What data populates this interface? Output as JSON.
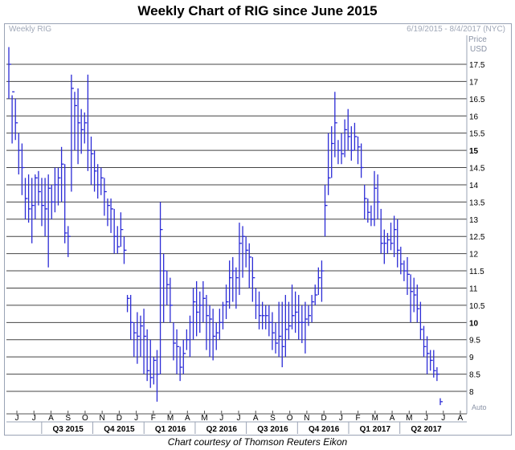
{
  "title": "Weekly Chart of RIG since June 2015",
  "panel_label": "Weekly RIG",
  "date_range": "6/19/2015 - 8/4/2017 (NYC)",
  "credit": "Chart courtesy of Thomson Reuters Eikon",
  "auto_label": "Auto",
  "colors": {
    "bars": "#2b2bd6",
    "grid": "#444444",
    "frame": "#9aa3b5"
  },
  "chart_data": {
    "type": "ohlc",
    "title": "Weekly Chart of RIG since June 2015",
    "ylabel": "Price USD",
    "ylim": [
      7.6,
      18.4
    ],
    "y_ticks": [
      "8",
      "8.5",
      "9",
      "9.5",
      "10",
      "10.5",
      "11",
      "11.5",
      "12",
      "12.5",
      "13",
      "13.5",
      "14",
      "14.5",
      "15",
      "15.5",
      "16",
      "16.5",
      "17",
      "17.5"
    ],
    "y_ticks_bold": [
      "10",
      "15"
    ],
    "month_ticks": [
      "J",
      "J",
      "A",
      "S",
      "O",
      "N",
      "D",
      "J",
      "F",
      "M",
      "A",
      "M",
      "J",
      "J",
      "A",
      "S",
      "O",
      "N",
      "D",
      "J",
      "F",
      "M",
      "A",
      "M",
      "J",
      "J",
      "A"
    ],
    "quarters": [
      "Q3 2015",
      "Q4 2015",
      "Q1 2016",
      "Q2 2016",
      "Q3 2016",
      "Q4 2016",
      "Q1 2017",
      "Q2 2017"
    ],
    "grid": true,
    "series": [
      {
        "values": [
          [
            18.0,
            16.5,
            17.5
          ],
          [
            16.6,
            15.2,
            16.7
          ],
          [
            16.5,
            15.3,
            15.8
          ],
          [
            15.5,
            14.3,
            15.0
          ],
          [
            15.2,
            13.7,
            14.5
          ],
          [
            14.2,
            13.0,
            13.6
          ],
          [
            14.3,
            12.9,
            13.3
          ],
          [
            14.2,
            12.3,
            13.4
          ],
          [
            14.3,
            13.0,
            14.2
          ],
          [
            14.4,
            13.4,
            13.8
          ],
          [
            14.2,
            12.8,
            13.4
          ],
          [
            14.2,
            12.5,
            13.3
          ],
          [
            14.3,
            11.6,
            13.9
          ],
          [
            14.0,
            13.0,
            13.5
          ],
          [
            14.5,
            13.2,
            14.0
          ],
          [
            14.5,
            13.4,
            14.2
          ],
          [
            15.1,
            13.5,
            14.6
          ],
          [
            14.6,
            12.3,
            12.6
          ],
          [
            12.8,
            11.9,
            12.5
          ],
          [
            17.2,
            13.8,
            16.8
          ],
          [
            16.7,
            15.0,
            16.3
          ],
          [
            16.8,
            14.6,
            15.8
          ],
          [
            16.2,
            14.9,
            15.6
          ],
          [
            16.1,
            15.2,
            15.8
          ],
          [
            17.2,
            14.4,
            15.0
          ],
          [
            15.4,
            14.0,
            14.9
          ],
          [
            15.0,
            13.8,
            14.4
          ],
          [
            14.6,
            13.6,
            14.0
          ],
          [
            14.5,
            13.7,
            14.2
          ],
          [
            14.2,
            13.1,
            13.8
          ],
          [
            13.6,
            12.8,
            13.4
          ],
          [
            13.6,
            12.6,
            13.3
          ],
          [
            13.3,
            12.0,
            12.5
          ],
          [
            12.8,
            12.0,
            12.2
          ],
          [
            13.2,
            12.2,
            12.7
          ],
          [
            12.5,
            11.7,
            12.1
          ],
          [
            10.8,
            10.3,
            10.7
          ],
          [
            10.8,
            9.5,
            10.0
          ],
          [
            10.0,
            9.0,
            9.7
          ],
          [
            10.3,
            8.8,
            9.6
          ],
          [
            10.2,
            9.0,
            9.9
          ],
          [
            10.4,
            8.5,
            9.6
          ],
          [
            9.8,
            8.3,
            8.6
          ],
          [
            9.5,
            8.1,
            8.4
          ],
          [
            9.0,
            8.2,
            8.9
          ],
          [
            9.2,
            7.7,
            8.5
          ],
          [
            13.5,
            8.5,
            12.7
          ],
          [
            12.0,
            10.0,
            11.5
          ],
          [
            11.5,
            10.5,
            11.1
          ],
          [
            11.3,
            10.0,
            10.5
          ],
          [
            10.0,
            8.9,
            9.4
          ],
          [
            9.8,
            8.5,
            9.3
          ],
          [
            9.3,
            8.3,
            8.7
          ],
          [
            9.5,
            8.5,
            9.1
          ],
          [
            9.8,
            9.2,
            9.5
          ],
          [
            10.2,
            9.0,
            10.0
          ],
          [
            11.0,
            9.5,
            10.6
          ],
          [
            11.2,
            9.6,
            10.3
          ],
          [
            10.9,
            9.7,
            10.5
          ],
          [
            11.2,
            10.0,
            10.7
          ],
          [
            10.8,
            9.2,
            10.2
          ],
          [
            10.5,
            9.0,
            10.1
          ],
          [
            10.4,
            8.9,
            9.6
          ],
          [
            10.0,
            9.2,
            9.7
          ],
          [
            10.4,
            9.5,
            10.0
          ],
          [
            10.6,
            9.8,
            10.5
          ],
          [
            11.1,
            10.1,
            10.6
          ],
          [
            11.8,
            10.4,
            11.3
          ],
          [
            11.9,
            10.6,
            11.5
          ],
          [
            11.6,
            10.4,
            11.3
          ],
          [
            12.9,
            10.8,
            12.3
          ],
          [
            12.8,
            11.3,
            12.5
          ],
          [
            12.5,
            11.6,
            12.1
          ],
          [
            12.3,
            11.0,
            11.9
          ],
          [
            11.9,
            10.6,
            11.3
          ],
          [
            11.0,
            10.1,
            10.5
          ],
          [
            10.9,
            9.8,
            10.2
          ],
          [
            10.6,
            9.8,
            10.2
          ],
          [
            10.5,
            9.8,
            10.2
          ],
          [
            10.5,
            9.6,
            10.0
          ],
          [
            10.3,
            9.2,
            9.7
          ],
          [
            10.0,
            9.1,
            9.4
          ],
          [
            10.6,
            9.0,
            9.6
          ],
          [
            10.6,
            8.7,
            9.3
          ],
          [
            10.8,
            9.0,
            9.8
          ],
          [
            10.6,
            9.5,
            9.9
          ],
          [
            11.1,
            9.8,
            10.2
          ],
          [
            10.9,
            9.7,
            10.3
          ],
          [
            10.8,
            9.5,
            10.0
          ],
          [
            10.5,
            9.4,
            10.0
          ],
          [
            10.6,
            9.1,
            10.1
          ],
          [
            10.5,
            9.9,
            10.2
          ],
          [
            10.8,
            10.0,
            10.6
          ],
          [
            11.1,
            10.5,
            10.8
          ],
          [
            11.6,
            10.8,
            11.3
          ],
          [
            11.8,
            10.6,
            11.5
          ],
          [
            14.0,
            12.5,
            13.4
          ],
          [
            15.5,
            13.7,
            14.2
          ],
          [
            15.7,
            14.2,
            15.2
          ],
          [
            16.7,
            14.8,
            15.8
          ],
          [
            15.3,
            14.6,
            15.0
          ],
          [
            15.5,
            14.6,
            14.9
          ],
          [
            15.9,
            14.8,
            15.6
          ],
          [
            16.2,
            15.0,
            15.4
          ],
          [
            15.7,
            14.7,
            15.0
          ],
          [
            15.8,
            15.0,
            15.4
          ],
          [
            15.4,
            14.6,
            15.1
          ],
          [
            15.2,
            14.2,
            14.5
          ],
          [
            14.0,
            13.0,
            13.6
          ],
          [
            13.6,
            12.9,
            13.2
          ],
          [
            13.4,
            12.8,
            13.0
          ],
          [
            14.4,
            12.8,
            13.9
          ],
          [
            14.3,
            13.0,
            13.5
          ],
          [
            13.3,
            12.0,
            12.3
          ],
          [
            12.7,
            11.7,
            12.3
          ],
          [
            12.6,
            12.0,
            12.4
          ],
          [
            12.9,
            12.1,
            12.3
          ],
          [
            13.1,
            11.9,
            12.7
          ],
          [
            13.0,
            11.6,
            12.1
          ],
          [
            12.2,
            11.4,
            11.7
          ],
          [
            11.8,
            11.2,
            11.5
          ],
          [
            11.9,
            10.8,
            11.4
          ],
          [
            11.4,
            10.0,
            10.9
          ],
          [
            11.3,
            10.3,
            10.8
          ],
          [
            11.1,
            10.0,
            10.4
          ],
          [
            10.6,
            9.5,
            9.8
          ],
          [
            9.9,
            9.0,
            9.3
          ],
          [
            9.6,
            8.5,
            9.1
          ],
          [
            9.2,
            8.6,
            8.9
          ],
          [
            9.2,
            8.4,
            8.6
          ],
          [
            8.7,
            8.3,
            8.5
          ],
          [
            7.8,
            7.6,
            7.7
          ]
        ]
      }
    ]
  }
}
